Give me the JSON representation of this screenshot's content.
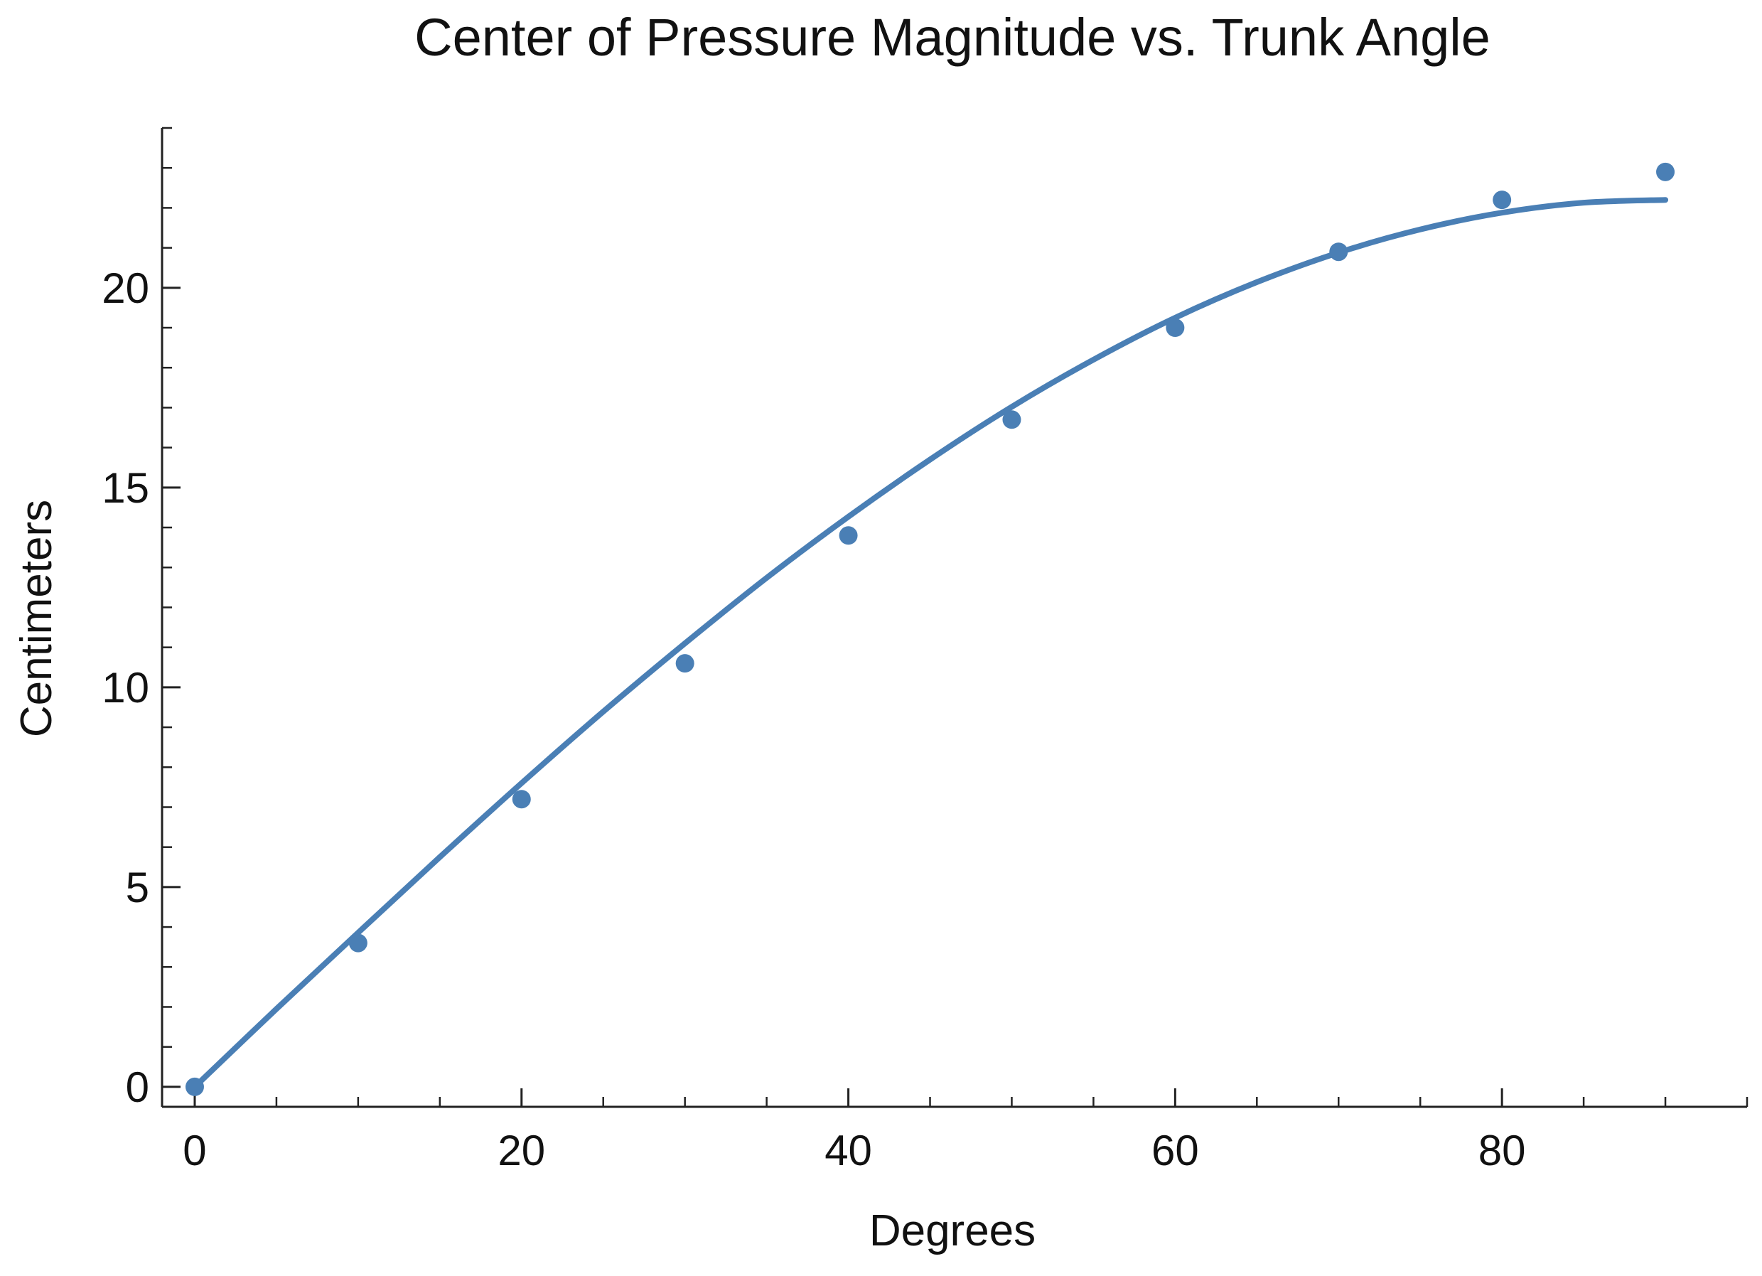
{
  "chart_data": {
    "type": "scatter",
    "title": "Center of Pressure Magnitude vs. Trunk Angle",
    "xlabel": "Degrees",
    "ylabel": "Centimeters",
    "xlim": [
      -2,
      95
    ],
    "ylim": [
      -0.5,
      24
    ],
    "x_ticks": [
      0,
      20,
      40,
      60,
      80
    ],
    "y_ticks": [
      0,
      5,
      10,
      15,
      20
    ],
    "x_minor_step": 5,
    "y_minor_step": 1,
    "grid": false,
    "color": "#4a7fb5",
    "series": [
      {
        "kind": "points",
        "x": [
          0,
          10,
          20,
          30,
          40,
          50,
          60,
          70,
          80,
          90
        ],
        "y": [
          0.0,
          3.6,
          7.2,
          10.6,
          13.8,
          16.7,
          19.0,
          20.9,
          22.2,
          22.9
        ]
      },
      {
        "kind": "fit",
        "x": [
          0,
          5,
          10,
          15,
          20,
          25,
          30,
          35,
          40,
          45,
          50,
          55,
          60,
          65,
          70,
          75,
          80,
          85,
          90
        ],
        "y": [
          0.0,
          1.95,
          3.86,
          5.75,
          7.6,
          9.39,
          11.1,
          12.74,
          14.27,
          15.7,
          17.02,
          18.2,
          19.25,
          20.14,
          20.88,
          21.46,
          21.88,
          22.13,
          22.2
        ]
      }
    ]
  }
}
